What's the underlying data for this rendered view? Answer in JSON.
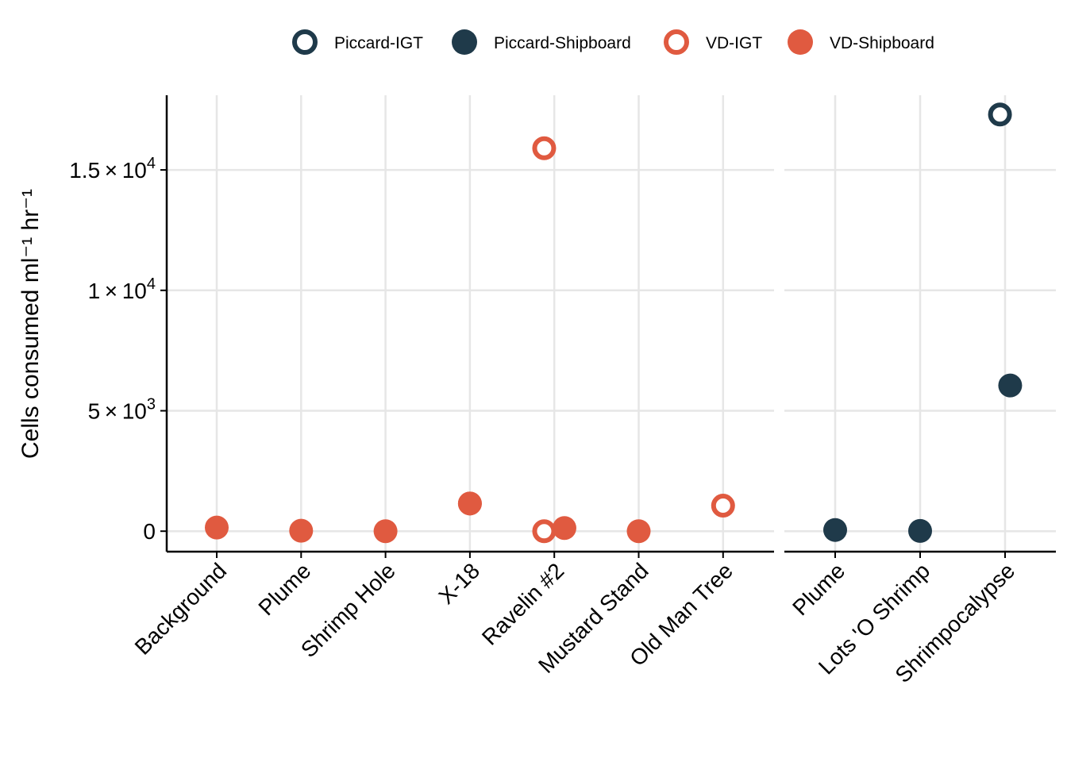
{
  "chart_data": {
    "type": "scatter",
    "ylabel": "Cells consumed  ml⁻¹ hr⁻¹",
    "ylim": [
      -850,
      18100
    ],
    "grid": true,
    "legend_position": "top",
    "yticks": [
      {
        "value": 0,
        "mant": "0",
        "exp": ""
      },
      {
        "value": 5000,
        "mant": "5 × 10",
        "exp": "3"
      },
      {
        "value": 10000,
        "mant": "1 × 10",
        "exp": "4"
      },
      {
        "value": 15000,
        "mant": "1.5 × 10",
        "exp": "4"
      }
    ],
    "legend": [
      {
        "name": "Piccard-IGT",
        "color": "#1f3a4a",
        "filled": false
      },
      {
        "name": "Piccard-Shipboard",
        "color": "#1f3a4a",
        "filled": true
      },
      {
        "name": "VD-IGT",
        "color": "#e05a40",
        "filled": false
      },
      {
        "name": "VD-Shipboard",
        "color": "#e05a40",
        "filled": true
      }
    ],
    "panels": [
      {
        "categories": [
          "Background",
          "Plume",
          "Shrimp Hole",
          "X-18",
          "Ravelin #2",
          "Mustard Stand",
          "Old Man Tree"
        ],
        "points": [
          {
            "x": "Background",
            "y": 150,
            "series": "VD-Shipboard",
            "offset": 0
          },
          {
            "x": "Plume",
            "y": 20,
            "series": "VD-Shipboard",
            "offset": 0
          },
          {
            "x": "Shrimp Hole",
            "y": 0,
            "series": "VD-Shipboard",
            "offset": 0
          },
          {
            "x": "X-18",
            "y": 1150,
            "series": "VD-IGT",
            "offset": 0
          },
          {
            "x": "X-18",
            "y": 1150,
            "series": "VD-Shipboard",
            "offset": 0
          },
          {
            "x": "Ravelin #2",
            "y": 15900,
            "series": "VD-IGT",
            "offset": -0.12
          },
          {
            "x": "Ravelin #2",
            "y": 0,
            "series": "VD-IGT",
            "offset": -0.12
          },
          {
            "x": "Ravelin #2",
            "y": 130,
            "series": "VD-Shipboard",
            "offset": 0.12
          },
          {
            "x": "Mustard Stand",
            "y": 0,
            "series": "VD-Shipboard",
            "offset": 0
          },
          {
            "x": "Old Man Tree",
            "y": 1060,
            "series": "VD-IGT",
            "offset": 0
          }
        ]
      },
      {
        "categories": [
          "Plume",
          "Lots 'O Shrimp",
          "Shrimpocalypse"
        ],
        "points": [
          {
            "x": "Plume",
            "y": 50,
            "series": "Piccard-Shipboard",
            "offset": 0
          },
          {
            "x": "Lots 'O Shrimp",
            "y": 10,
            "series": "Piccard-Shipboard",
            "offset": 0
          },
          {
            "x": "Shrimpocalypse",
            "y": 17300,
            "series": "Piccard-IGT",
            "offset": -0.06
          },
          {
            "x": "Shrimpocalypse",
            "y": 6050,
            "series": "Piccard-Shipboard",
            "offset": 0.06
          }
        ]
      }
    ]
  }
}
